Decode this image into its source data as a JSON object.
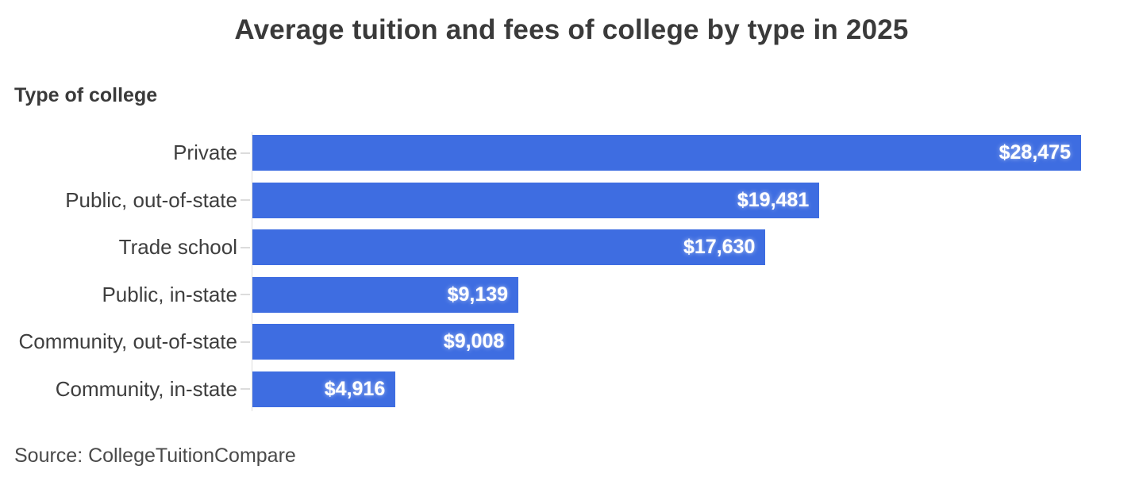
{
  "chart_data": {
    "type": "bar",
    "orientation": "horizontal",
    "title": "Average tuition and fees of college by type in 2025",
    "ylabel": "Type of college",
    "xlabel": "",
    "categories": [
      "Private",
      "Public, out-of-state",
      "Trade school",
      "Public, in-state",
      "Community, out-of-state",
      "Community, in-state"
    ],
    "values": [
      28475,
      19481,
      17630,
      9139,
      9008,
      4916
    ],
    "value_labels": [
      "$28,475",
      "$19,481",
      "$17,630",
      "$9,139",
      "$9,008",
      "$4,916"
    ],
    "xlim": [
      0,
      28475
    ],
    "grid": false,
    "legend": false,
    "bar_color": "#3e6de1",
    "value_label_color": "#ffffff",
    "axis_line_color": "#dedede",
    "source": "Source: CollegeTuitionCompare"
  }
}
